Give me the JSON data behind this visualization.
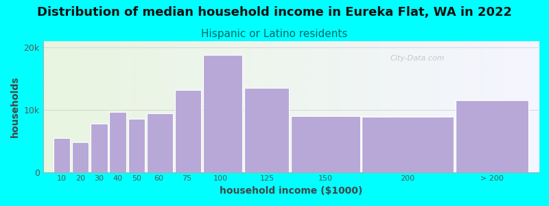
{
  "title": "Distribution of median household income in Eureka Flat, WA in 2022",
  "subtitle": "Hispanic or Latino residents",
  "xlabel": "household income ($1000)",
  "ylabel": "households",
  "background_color": "#00FFFF",
  "bar_color": "#b8a8d8",
  "categories": [
    "10",
    "20",
    "30",
    "40",
    "50",
    "60",
    "75",
    "100",
    "125",
    "150",
    "200",
    "> 200"
  ],
  "values": [
    5500,
    4800,
    7800,
    9700,
    8500,
    9400,
    13200,
    18800,
    13500,
    9000,
    8900,
    11500
  ],
  "bar_lefts": [
    10,
    20,
    30,
    40,
    50,
    60,
    75,
    90,
    112,
    137,
    175,
    225
  ],
  "bar_rights": [
    20,
    30,
    40,
    50,
    60,
    75,
    90,
    112,
    137,
    175,
    225,
    265
  ],
  "xtick_positions": [
    15,
    25,
    35,
    45,
    55,
    67,
    82,
    100,
    125,
    156,
    200,
    245
  ],
  "ylim": [
    0,
    21000
  ],
  "yticks": [
    0,
    10000,
    20000
  ],
  "ytick_labels": [
    "0",
    "10k",
    "20k"
  ],
  "title_fontsize": 13,
  "subtitle_fontsize": 11,
  "label_fontsize": 10,
  "subtitle_color": "#006666",
  "watermark": "City-Data.com"
}
